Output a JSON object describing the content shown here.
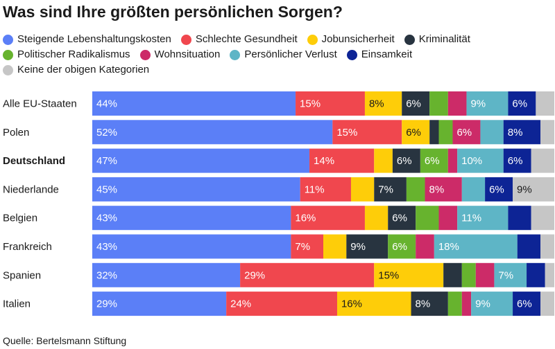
{
  "title": "Was sind Ihre größten persönlichen Sorgen?",
  "source": "Quelle: Bertelsmann Stiftung",
  "chart_data": {
    "type": "bar",
    "orientation": "horizontal",
    "stacked": true,
    "percent_scale": true,
    "legend_position": "top",
    "grid": false,
    "categories": [
      "Alle EU-Staaten",
      "Polen",
      "Deutschland",
      "Niederlande",
      "Belgien",
      "Frankreich",
      "Spanien",
      "Italien"
    ],
    "highlighted_category": "Deutschland",
    "series": [
      {
        "name": "Steigende Lebenshaltungskosten",
        "color": "#5b7ff7",
        "label_color": "#ffffff",
        "values": [
          44,
          52,
          47,
          45,
          43,
          43,
          32,
          29
        ],
        "labels": [
          "44%",
          "52%",
          "47%",
          "45%",
          "43%",
          "43%",
          "32%",
          "29%"
        ]
      },
      {
        "name": "Schlechte Gesundheit",
        "color": "#f0474e",
        "label_color": "#ffffff",
        "values": [
          15,
          15,
          14,
          11,
          16,
          7,
          29,
          24
        ],
        "labels": [
          "15%",
          "15%",
          "14%",
          "11%",
          "16%",
          "7%",
          "29%",
          "24%"
        ]
      },
      {
        "name": "Jobunsicherheit",
        "color": "#fecd09",
        "label_color": "#1a1a1a",
        "values": [
          8,
          6,
          4,
          5,
          5,
          5,
          15,
          16
        ],
        "labels": [
          "8%",
          "6%",
          "",
          "",
          "",
          "",
          "15%",
          "16%"
        ]
      },
      {
        "name": "Kriminalität",
        "color": "#283440",
        "label_color": "#ffffff",
        "values": [
          6,
          2,
          6,
          7,
          6,
          9,
          4,
          8
        ],
        "labels": [
          "6%",
          "",
          "6%",
          "7%",
          "6%",
          "9%",
          "",
          "8%"
        ]
      },
      {
        "name": "Politischer Radikalismus",
        "color": "#67b32e",
        "label_color": "#ffffff",
        "values": [
          4,
          3,
          6,
          4,
          5,
          6,
          3,
          3
        ],
        "labels": [
          "",
          "",
          "6%",
          "",
          "",
          "6%",
          "",
          ""
        ]
      },
      {
        "name": "Wohnsituation",
        "color": "#cc2b68",
        "label_color": "#ffffff",
        "values": [
          4,
          6,
          2,
          8,
          4,
          4,
          4,
          2
        ],
        "labels": [
          "",
          "6%",
          "",
          "8%",
          "",
          "",
          "",
          ""
        ]
      },
      {
        "name": "Persönlicher Verlust",
        "color": "#5eb5c6",
        "label_color": "#ffffff",
        "values": [
          9,
          5,
          10,
          5,
          11,
          18,
          7,
          9
        ],
        "labels": [
          "9%",
          "",
          "10%",
          "",
          "11%",
          "18%",
          "7%",
          "9%"
        ]
      },
      {
        "name": "Einsamkeit",
        "color": "#0d2495",
        "label_color": "#ffffff",
        "values": [
          6,
          8,
          6,
          6,
          5,
          5,
          4,
          6
        ],
        "labels": [
          "6%",
          "8%",
          "6%",
          "6%",
          "",
          "",
          "",
          "6%"
        ]
      },
      {
        "name": "Keine der obigen Kategorien",
        "color": "#c6c6c6",
        "label_color": "#1a1a1a",
        "values": [
          4,
          3,
          5,
          9,
          5,
          3,
          2,
          3
        ],
        "labels": [
          "",
          "",
          "",
          "9%",
          "",
          "",
          "",
          ""
        ]
      }
    ]
  }
}
